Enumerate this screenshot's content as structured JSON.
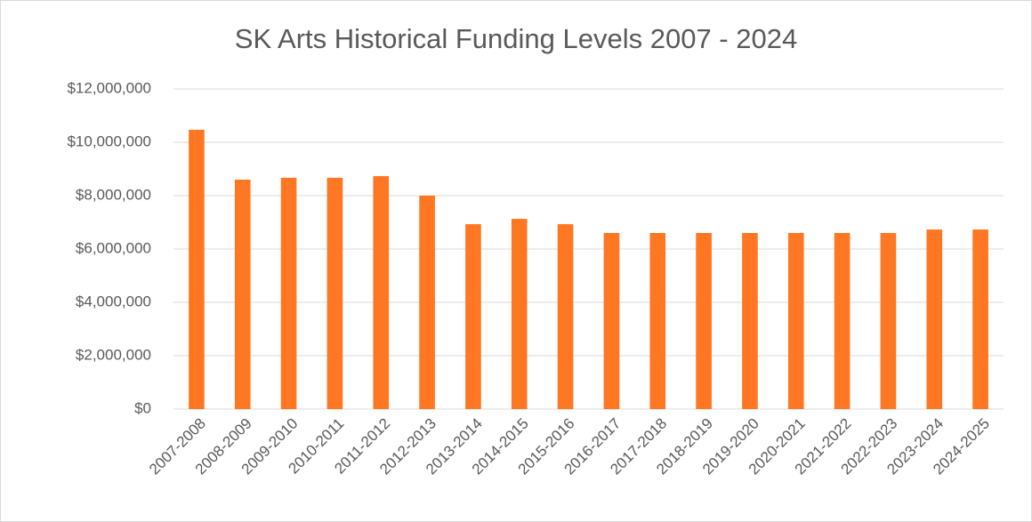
{
  "chart_data": {
    "type": "bar",
    "title": "SK Arts Historical Funding Levels 2007 - 2024",
    "categories": [
      "2007-2008",
      "2008-2009",
      "2009-2010",
      "2010-2011",
      "2011-2012",
      "2012-2013",
      "2013-2014",
      "2014-2015",
      "2015-2016",
      "2016-2017",
      "2017-2018",
      "2018-2019",
      "2019-2020",
      "2020-2021",
      "2021-2022",
      "2022-2023",
      "2023-2024",
      "2024-2025"
    ],
    "values": [
      10470000,
      8600000,
      8670000,
      8670000,
      8730000,
      8000000,
      6930000,
      7130000,
      6930000,
      6600000,
      6600000,
      6600000,
      6600000,
      6600000,
      6600000,
      6600000,
      6730000,
      6730000
    ],
    "color": "#ff7722",
    "ylim": [
      0,
      12000000
    ],
    "yticks": [
      {
        "value": 0,
        "label": "$0"
      },
      {
        "value": 2000000,
        "label": "$2,000,000"
      },
      {
        "value": 4000000,
        "label": "$4,000,000"
      },
      {
        "value": 6000000,
        "label": "$6,000,000"
      },
      {
        "value": 8000000,
        "label": "$8,000,000"
      },
      {
        "value": 10000000,
        "label": "$10,000,000"
      },
      {
        "value": 12000000,
        "label": "$12,000,000"
      }
    ],
    "grid": true
  }
}
